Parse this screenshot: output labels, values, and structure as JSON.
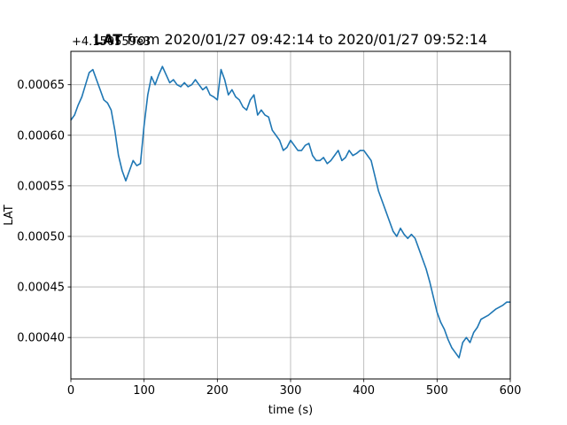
{
  "chart_data": {
    "type": "line",
    "title_bold": "LAT",
    "title_rest": " from 2020/01/27 09:42:14 to 2020/01/27 09:52:14",
    "xlabel": "time (s)",
    "ylabel": "LAT",
    "y_offset_label": "+4.150559e3",
    "xlim": [
      0,
      600
    ],
    "ylim": [
      0.000359,
      0.000683
    ],
    "x_ticks": [
      0,
      100,
      200,
      300,
      400,
      500,
      600
    ],
    "x_tick_labels": [
      "0",
      "100",
      "200",
      "300",
      "400",
      "500",
      "600"
    ],
    "y_ticks": [
      0.0004,
      0.00045,
      0.0005,
      0.00055,
      0.0006,
      0.00065
    ],
    "y_tick_labels": [
      "0.00040",
      "0.00045",
      "0.00050",
      "0.00055",
      "0.00060",
      "0.00065"
    ],
    "grid": true,
    "series": [
      {
        "color": "#1f77b4",
        "x": [
          0,
          5,
          10,
          15,
          20,
          25,
          30,
          35,
          40,
          45,
          50,
          55,
          60,
          65,
          70,
          75,
          80,
          85,
          90,
          95,
          100,
          105,
          110,
          115,
          120,
          125,
          130,
          135,
          140,
          145,
          150,
          155,
          160,
          165,
          170,
          175,
          180,
          185,
          190,
          195,
          200,
          205,
          210,
          215,
          220,
          225,
          230,
          235,
          240,
          245,
          250,
          255,
          260,
          265,
          270,
          275,
          280,
          285,
          290,
          295,
          300,
          305,
          310,
          315,
          320,
          325,
          330,
          335,
          340,
          345,
          350,
          355,
          360,
          365,
          370,
          375,
          380,
          385,
          390,
          395,
          400,
          405,
          410,
          415,
          420,
          425,
          430,
          435,
          440,
          445,
          450,
          455,
          460,
          465,
          470,
          475,
          480,
          485,
          490,
          495,
          500,
          505,
          510,
          515,
          520,
          525,
          530,
          535,
          540,
          545,
          550,
          555,
          560,
          565,
          570,
          575,
          580,
          585,
          590,
          595,
          600
        ],
        "y": [
          0.000615,
          0.00062,
          0.00063,
          0.000638,
          0.00065,
          0.000662,
          0.000665,
          0.000655,
          0.000645,
          0.000635,
          0.000632,
          0.000625,
          0.000605,
          0.00058,
          0.000565,
          0.000555,
          0.000565,
          0.000575,
          0.00057,
          0.000572,
          0.00061,
          0.00064,
          0.000658,
          0.00065,
          0.00066,
          0.000668,
          0.00066,
          0.000652,
          0.000655,
          0.00065,
          0.000648,
          0.000652,
          0.000648,
          0.00065,
          0.000655,
          0.00065,
          0.000645,
          0.000648,
          0.00064,
          0.000638,
          0.000635,
          0.000665,
          0.000655,
          0.00064,
          0.000645,
          0.000638,
          0.000635,
          0.000628,
          0.000625,
          0.000635,
          0.00064,
          0.00062,
          0.000625,
          0.00062,
          0.000618,
          0.000605,
          0.0006,
          0.000595,
          0.000585,
          0.000588,
          0.000595,
          0.00059,
          0.000585,
          0.000585,
          0.00059,
          0.000592,
          0.00058,
          0.000575,
          0.000575,
          0.000578,
          0.000572,
          0.000575,
          0.00058,
          0.000585,
          0.000575,
          0.000578,
          0.000585,
          0.00058,
          0.000582,
          0.000585,
          0.000585,
          0.00058,
          0.000575,
          0.00056,
          0.000545,
          0.000535,
          0.000525,
          0.000515,
          0.000505,
          0.0005,
          0.000508,
          0.000502,
          0.000498,
          0.000502,
          0.000498,
          0.000488,
          0.000478,
          0.000468,
          0.000455,
          0.00044,
          0.000425,
          0.000415,
          0.000408,
          0.000398,
          0.00039,
          0.000385,
          0.00038,
          0.000395,
          0.0004,
          0.000395,
          0.000405,
          0.00041,
          0.000418,
          0.00042,
          0.000422,
          0.000425,
          0.000428,
          0.00043,
          0.000432,
          0.000435,
          0.000435
        ]
      }
    ]
  }
}
